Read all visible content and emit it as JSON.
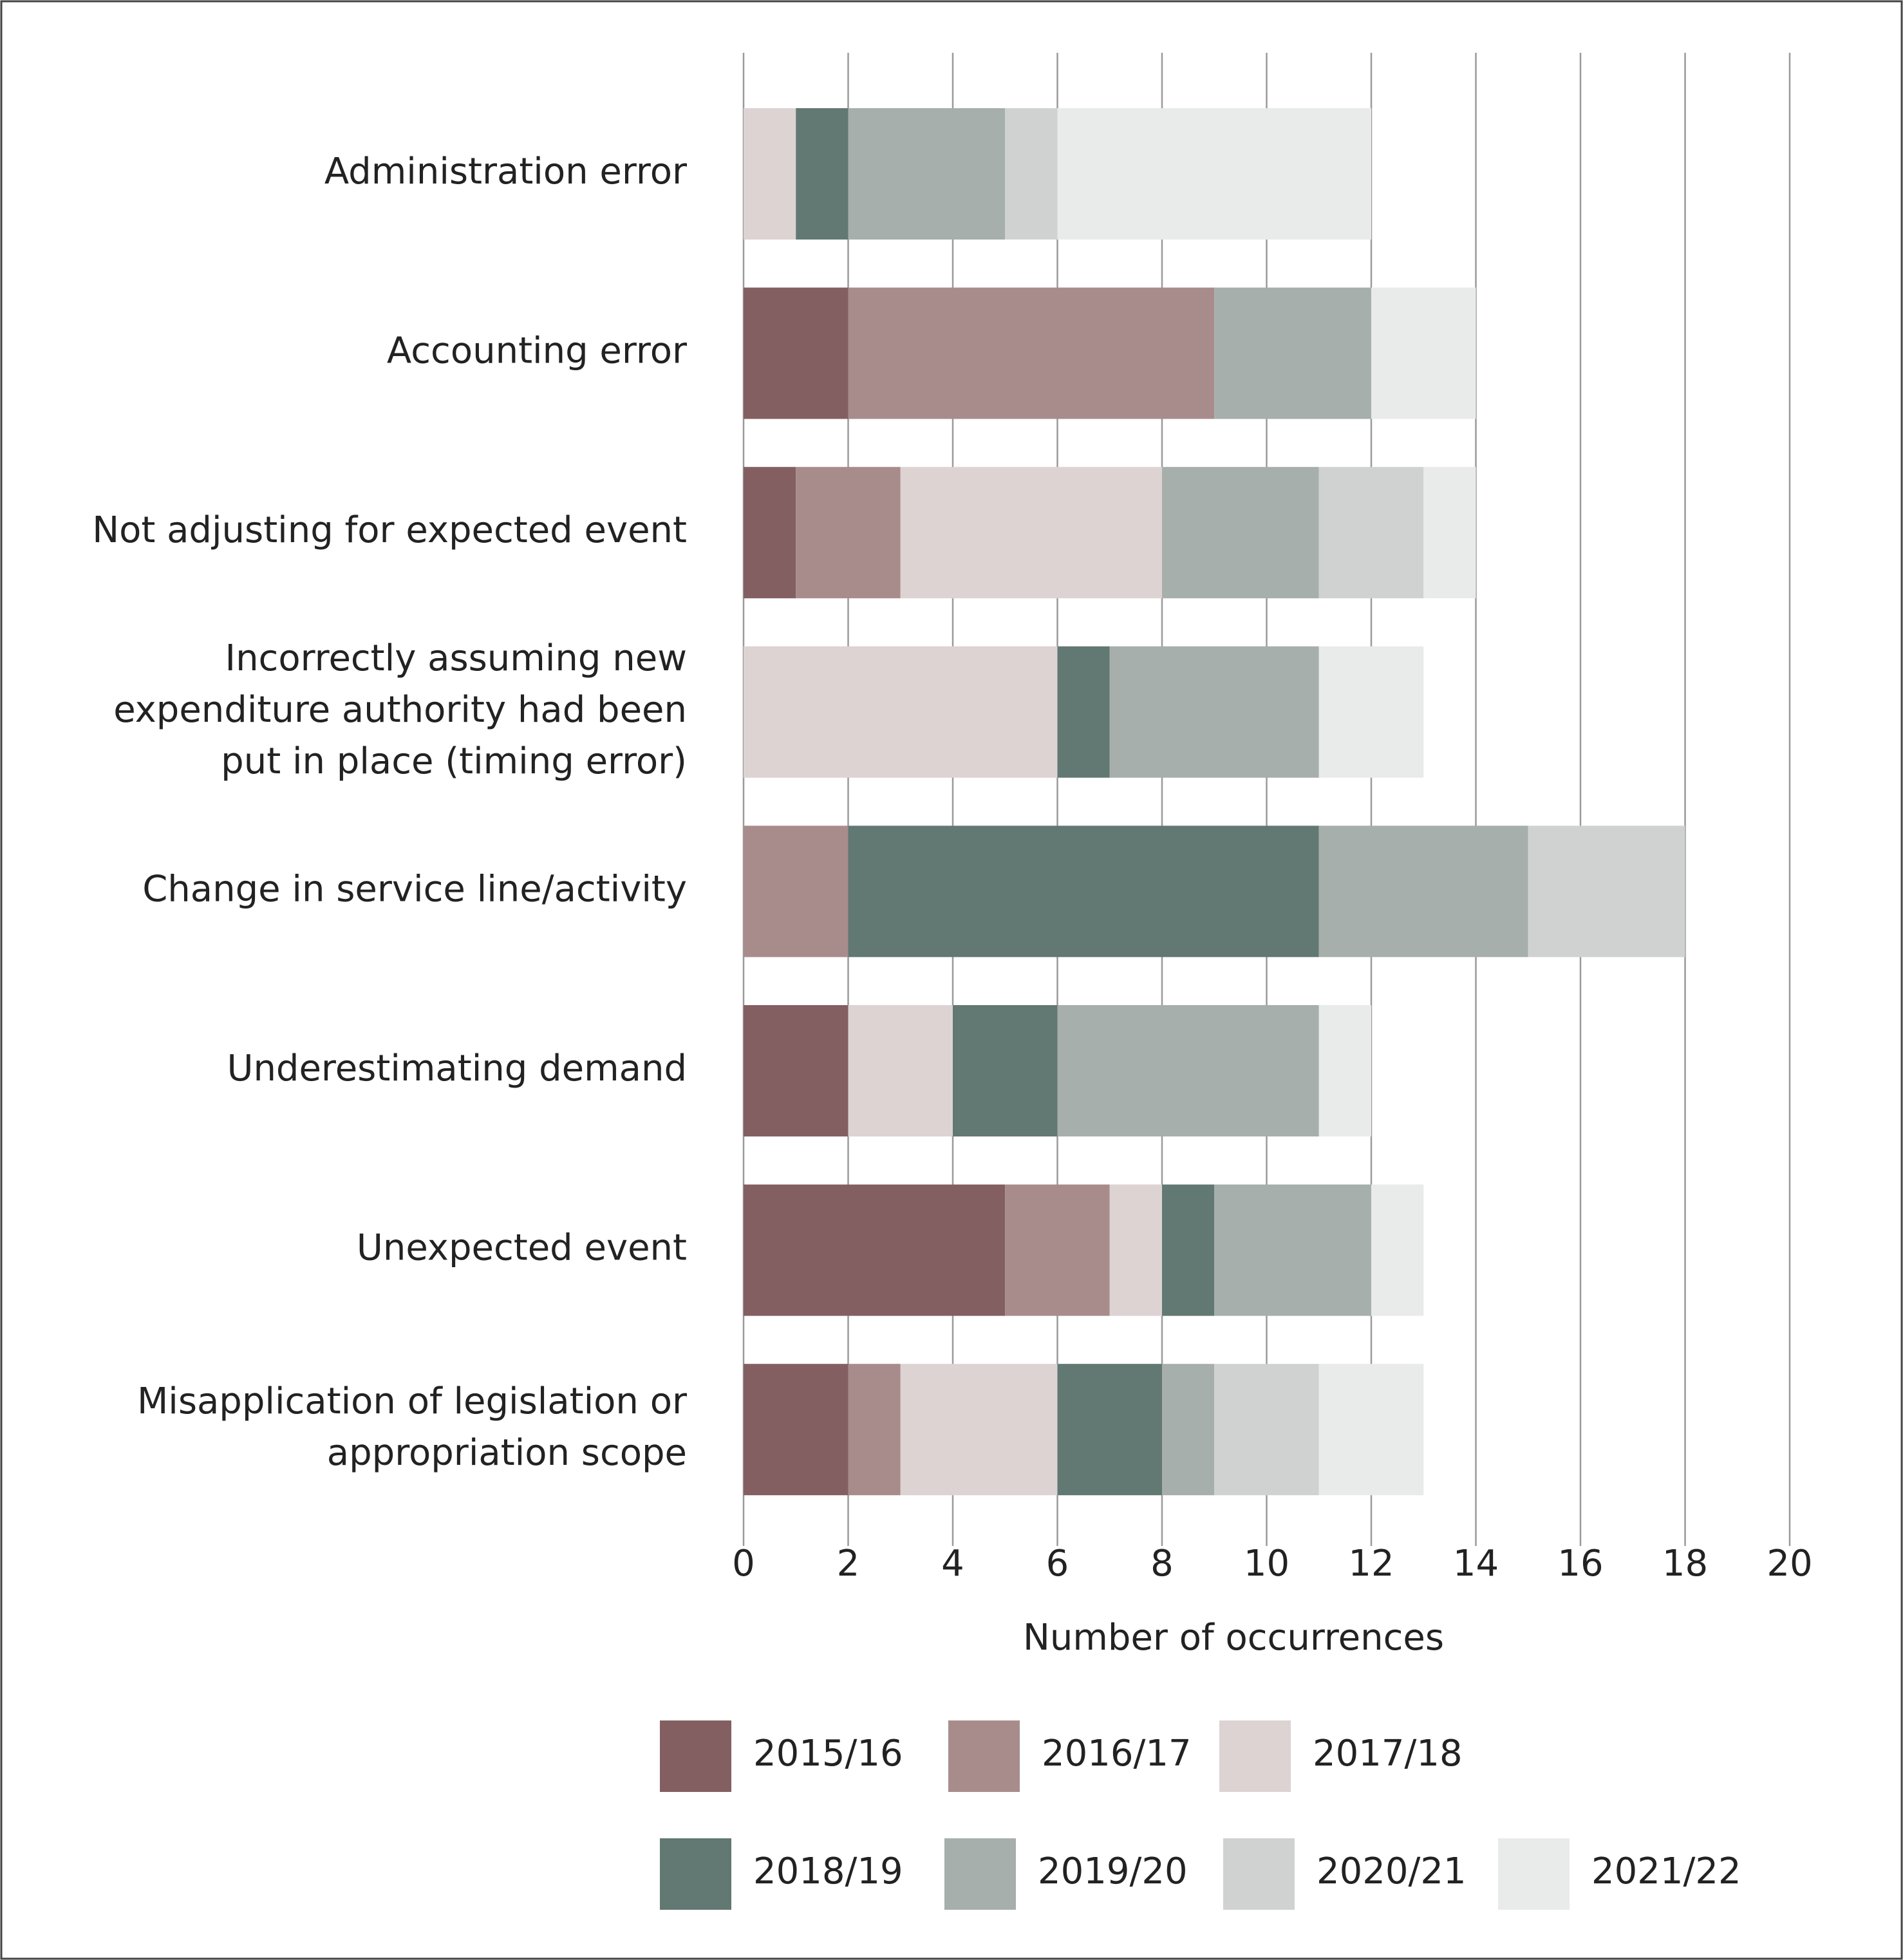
{
  "chart_data": {
    "type": "stacked-bar-horizontal",
    "categories": [
      "Administration error",
      "Accounting error",
      "Not adjusting for expected event",
      "Incorrectly assuming new expenditure authority had been put in place (timing error)",
      "Change in service line/activity",
      "Underestimating demand",
      "Unexpected event",
      "Misapplication of legislation or appropriation scope"
    ],
    "series": [
      {
        "name": "2015/16",
        "color": "#835f62",
        "values": [
          0,
          2,
          1,
          0,
          0,
          2,
          5,
          2
        ]
      },
      {
        "name": "2016/17",
        "color": "#a88c8c",
        "values": [
          0,
          7,
          2,
          0,
          2,
          0,
          2,
          1
        ]
      },
      {
        "name": "2017/18",
        "color": "#ddd3d3",
        "values": [
          1,
          0,
          5,
          6,
          0,
          2,
          1,
          3
        ]
      },
      {
        "name": "2018/19",
        "color": "#627872",
        "values": [
          1,
          0,
          0,
          1,
          9,
          2,
          1,
          2
        ]
      },
      {
        "name": "2019/20",
        "color": "#a6afab",
        "values": [
          3,
          3,
          3,
          4,
          4,
          5,
          3,
          1
        ]
      },
      {
        "name": "2020/21",
        "color": "#d0d2d1",
        "values": [
          1,
          0,
          2,
          0,
          3,
          0,
          0,
          2
        ]
      },
      {
        "name": "2021/22",
        "color": "#e9ebea",
        "values": [
          6,
          2,
          1,
          2,
          0,
          1,
          1,
          2
        ]
      }
    ],
    "xlabel": "Number of occurrences",
    "xlim": [
      0,
      20
    ],
    "xticks": [
      0,
      2,
      4,
      6,
      8,
      10,
      12,
      14,
      16,
      18,
      20
    ],
    "grid": true
  }
}
